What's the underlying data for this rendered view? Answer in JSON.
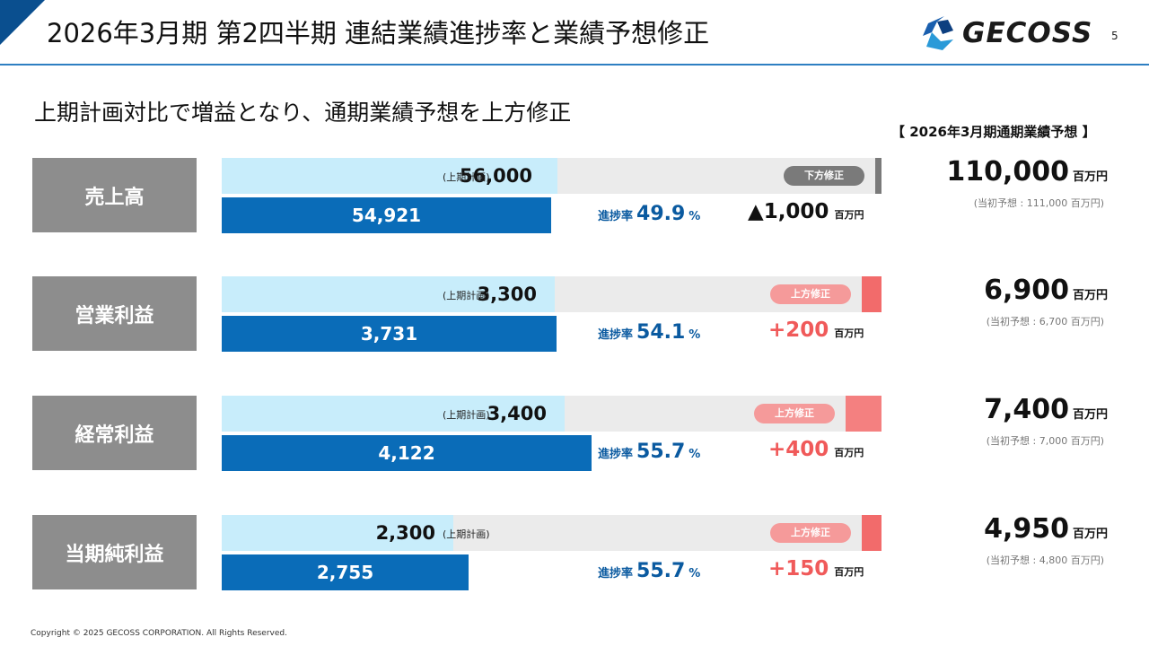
{
  "header": {
    "title": "2026年3月期 第2四半期 連結業績進捗率と業績予想修正",
    "page_number": "5",
    "logo_text": "GECOSS"
  },
  "subtitle": "上期計画対比で増益となり、通期業績予想を上方修正",
  "forecast_heading": "【 2026年3月期通期業績予想 】",
  "colors": {
    "accent": "#0a6cb8",
    "plan": "#c8edfb",
    "up": "#f26b6b",
    "down": "#7a7a7a",
    "label": "#8d8d8d"
  },
  "rows": [
    {
      "label": "売上高",
      "plan_value": "56,000",
      "plan_value_num": 56000,
      "plan_tag": "(上期計画)",
      "actual_value": "54,921",
      "actual_value_num": 54921,
      "revision_badge": "下方修正",
      "revision_dir": "down",
      "progress_label": "進捗率",
      "progress_value": "49.9",
      "progress_unit": "%",
      "change_value": "▲1,000",
      "change_unit": "百万円",
      "forecast_value": "110,000",
      "forecast_unit": "百万円",
      "initial_note": "(当初予想 : 111,000 百万円)"
    },
    {
      "label": "営業利益",
      "plan_value": "3,300",
      "plan_value_num": 3300,
      "plan_tag": "(上期計画)",
      "actual_value": "3,731",
      "actual_value_num": 3731,
      "revision_badge": "上方修正",
      "revision_dir": "up",
      "progress_label": "進捗率",
      "progress_value": "54.1",
      "progress_unit": "%",
      "change_value": "+200",
      "change_unit": "百万円",
      "forecast_value": "6,900",
      "forecast_unit": "百万円",
      "initial_note": "(当初予想 : 6,700 百万円)"
    },
    {
      "label": "経常利益",
      "plan_value": "3,400",
      "plan_value_num": 3400,
      "plan_tag": "(上期計画)",
      "actual_value": "4,122",
      "actual_value_num": 4122,
      "revision_badge": "上方修正",
      "revision_dir": "up",
      "progress_label": "進捗率",
      "progress_value": "55.7",
      "progress_unit": "%",
      "change_value": "+400",
      "change_unit": "百万円",
      "forecast_value": "7,400",
      "forecast_unit": "百万円",
      "initial_note": "(当初予想 : 7,000 百万円)"
    },
    {
      "label": "当期純利益",
      "plan_value": "2,300",
      "plan_value_num": 2300,
      "plan_tag": "(上期計画)",
      "actual_value": "2,755",
      "actual_value_num": 2755,
      "revision_badge": "上方修正",
      "revision_dir": "up",
      "progress_label": "進捗率",
      "progress_value": "55.7",
      "progress_unit": "%",
      "change_value": "+150",
      "change_unit": "百万円",
      "forecast_value": "4,950",
      "forecast_unit": "百万円",
      "initial_note": "(当初予想 : 4,800 百万円)"
    }
  ],
  "footer": {
    "copyright": "Copyright © 2025 GECOSS CORPORATION. All Rights Reserved."
  }
}
